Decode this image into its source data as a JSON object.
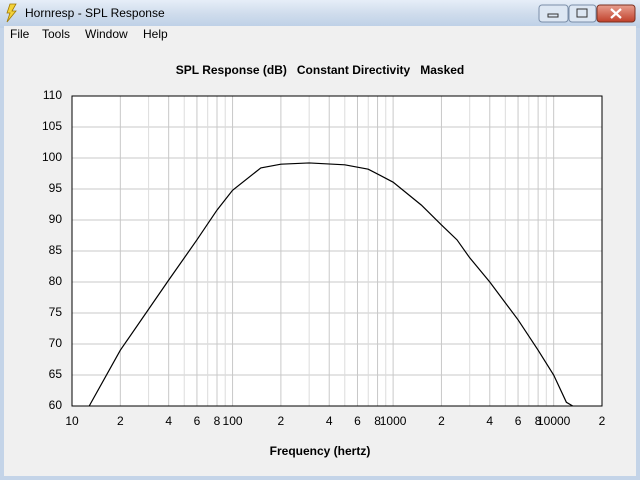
{
  "window": {
    "title": "Hornresp - SPL Response"
  },
  "menu": [
    "File",
    "Tools",
    "Window",
    "Help"
  ],
  "chart_data": {
    "type": "line",
    "title": "SPL Response (dB)   Constant Directivity   Masked",
    "x_label": "Frequency (hertz)",
    "x_scale": "log",
    "grid": true,
    "xlim": [
      10,
      20000
    ],
    "ylim": [
      60,
      110
    ],
    "xticks": [
      10,
      {
        "value": 20,
        "label": "2"
      },
      {
        "value": 40,
        "label": "4"
      },
      {
        "value": 60,
        "label": "6"
      },
      {
        "value": 80,
        "label": "8"
      },
      100,
      {
        "value": 200,
        "label": "2"
      },
      {
        "value": 400,
        "label": "4"
      },
      {
        "value": 600,
        "label": "6"
      },
      {
        "value": 800,
        "label": "8"
      },
      1000,
      {
        "value": 2000,
        "label": "2"
      },
      {
        "value": 4000,
        "label": "4"
      },
      {
        "value": 6000,
        "label": "6"
      },
      {
        "value": 8000,
        "label": "8"
      },
      10000,
      {
        "value": 20000,
        "label": "2"
      }
    ],
    "x_minor_grid": [
      30,
      50,
      70,
      90,
      300,
      500,
      700,
      900,
      3000,
      5000,
      7000,
      9000
    ],
    "yticks": [
      60,
      65,
      70,
      75,
      80,
      85,
      90,
      95,
      100,
      105,
      110
    ],
    "series": [
      {
        "color": "#000000",
        "x": [
          12.8,
          20,
          40,
          60,
          80,
          100,
          150,
          200,
          300,
          500,
          700,
          1000,
          1500,
          2000,
          2500,
          3000,
          4000,
          6000,
          8000,
          10000,
          12000,
          13150
        ],
        "values": [
          60,
          69,
          80.3,
          86.8,
          91.6,
          94.8,
          98.4,
          99.0,
          99.2,
          98.9,
          98.2,
          96.1,
          92.4,
          89.2,
          86.8,
          83.9,
          80,
          73.9,
          69,
          65,
          60.6,
          60
        ]
      }
    ]
  }
}
